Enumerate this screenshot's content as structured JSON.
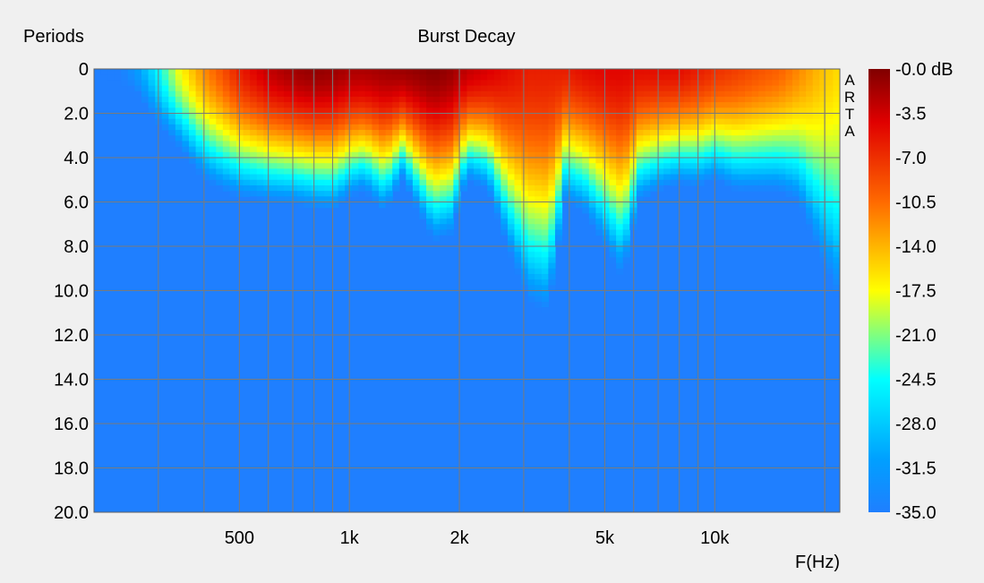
{
  "chart_data": {
    "type": "heatmap",
    "title": "Burst Decay",
    "ylabel": "Periods",
    "xlabel": "F(Hz)",
    "watermark": "ARTA",
    "x_scale": "log",
    "x_range": [
      200,
      22000
    ],
    "x_ticks": [
      {
        "value": 500,
        "label": "500"
      },
      {
        "value": 1000,
        "label": "1k"
      },
      {
        "value": 2000,
        "label": "2k"
      },
      {
        "value": 5000,
        "label": "5k"
      },
      {
        "value": 10000,
        "label": "10k"
      }
    ],
    "y_range": [
      0,
      20
    ],
    "y_reversed": true,
    "y_ticks": [
      "0",
      "2.0",
      "4.0",
      "6.0",
      "8.0",
      "10.0",
      "12.0",
      "14.0",
      "16.0",
      "18.0",
      "20.0"
    ],
    "grid": true,
    "colorbar": {
      "range_db": [
        0,
        -35
      ],
      "labels": [
        "-0.0 dB",
        "-3.5",
        "-7.0",
        "-10.5",
        "-14.0",
        "-17.5",
        "-21.0",
        "-24.5",
        "-28.0",
        "-31.5",
        "-35.0"
      ],
      "colormap": "jet"
    },
    "decay_profile": [
      {
        "f": 200,
        "peak_db": -40,
        "end_periods": 0
      },
      {
        "f": 260,
        "peak_db": -32,
        "end_periods": 1.0
      },
      {
        "f": 300,
        "peak_db": -25,
        "end_periods": 2.5
      },
      {
        "f": 340,
        "peak_db": -18,
        "end_periods": 3.5
      },
      {
        "f": 400,
        "peak_db": -12,
        "end_periods": 5.0
      },
      {
        "f": 450,
        "peak_db": -9,
        "end_periods": 5.5
      },
      {
        "f": 500,
        "peak_db": -6,
        "end_periods": 5.8
      },
      {
        "f": 600,
        "peak_db": -3,
        "end_periods": 6.0
      },
      {
        "f": 700,
        "peak_db": -1.5,
        "end_periods": 6.1
      },
      {
        "f": 800,
        "peak_db": -0.8,
        "end_periods": 6.3
      },
      {
        "f": 900,
        "peak_db": -1.2,
        "end_periods": 6.4
      },
      {
        "f": 1000,
        "peak_db": -2,
        "end_periods": 5.8
      },
      {
        "f": 1100,
        "peak_db": -2,
        "end_periods": 5.5
      },
      {
        "f": 1250,
        "peak_db": -1.5,
        "end_periods": 6.5
      },
      {
        "f": 1400,
        "peak_db": -1.2,
        "end_periods": 5.0
      },
      {
        "f": 1550,
        "peak_db": -0.8,
        "end_periods": 6.5
      },
      {
        "f": 1700,
        "peak_db": -0.3,
        "end_periods": 7.8
      },
      {
        "f": 1900,
        "peak_db": -1.2,
        "end_periods": 7.5
      },
      {
        "f": 2100,
        "peak_db": -3,
        "end_periods": 5.0
      },
      {
        "f": 2400,
        "peak_db": -4,
        "end_periods": 5.5
      },
      {
        "f": 2700,
        "peak_db": -5,
        "end_periods": 8.0
      },
      {
        "f": 3100,
        "peak_db": -6,
        "end_periods": 10.5
      },
      {
        "f": 3500,
        "peak_db": -6,
        "end_periods": 11.0
      },
      {
        "f": 3900,
        "peak_db": -6,
        "end_periods": 6.0
      },
      {
        "f": 4400,
        "peak_db": -5,
        "end_periods": 6.5
      },
      {
        "f": 5000,
        "peak_db": -4.5,
        "end_periods": 8.0
      },
      {
        "f": 5600,
        "peak_db": -4.5,
        "end_periods": 9.5
      },
      {
        "f": 6200,
        "peak_db": -5,
        "end_periods": 6.0
      },
      {
        "f": 7000,
        "peak_db": -5,
        "end_periods": 5.5
      },
      {
        "f": 8000,
        "peak_db": -5,
        "end_periods": 5.2
      },
      {
        "f": 9000,
        "peak_db": -6,
        "end_periods": 5.3
      },
      {
        "f": 10000,
        "peak_db": -7,
        "end_periods": 5.0
      },
      {
        "f": 11500,
        "peak_db": -8,
        "end_periods": 5.5
      },
      {
        "f": 13000,
        "peak_db": -9,
        "end_periods": 5.5
      },
      {
        "f": 15000,
        "peak_db": -10,
        "end_periods": 5.5
      },
      {
        "f": 17000,
        "peak_db": -12,
        "end_periods": 6.0
      },
      {
        "f": 19000,
        "peak_db": -14,
        "end_periods": 8.0
      },
      {
        "f": 22000,
        "peak_db": -16,
        "end_periods": 10.5
      }
    ]
  }
}
